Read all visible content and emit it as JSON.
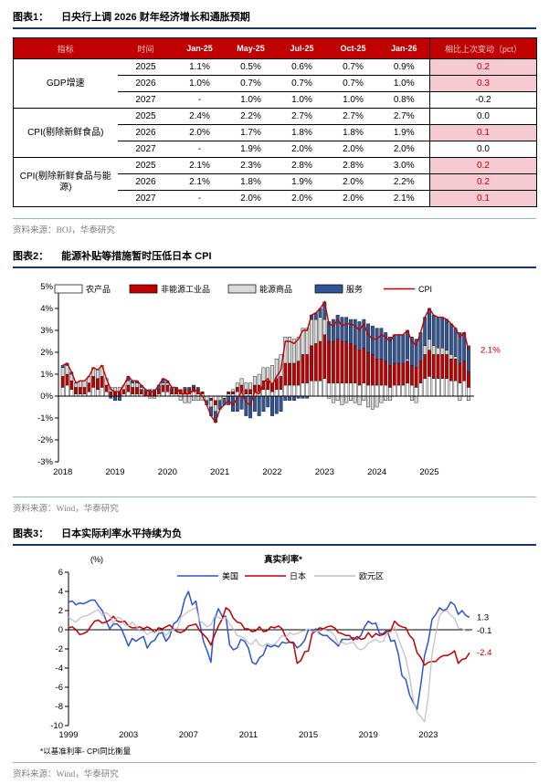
{
  "figure1": {
    "label": "图表1：",
    "title": "日央行上调 2026 财年经济增长和通胀预期",
    "source": "资料来源：BOJ，华泰研究",
    "table": {
      "columns": [
        "指标",
        "时间",
        "Jan-25",
        "May-25",
        "Jul-25",
        "Oct-25",
        "Jan-26",
        "相比上次变动（pct）"
      ],
      "groups": [
        {
          "label": "GDP增速",
          "rows": [
            {
              "year": "2025",
              "values": [
                "1.1%",
                "0.5%",
                "0.6%",
                "0.7%",
                "0.9%"
              ],
              "change": "0.2",
              "highlight": true
            },
            {
              "year": "2026",
              "values": [
                "1.0%",
                "0.7%",
                "0.7%",
                "0.7%",
                "1.0%"
              ],
              "change": "0.3",
              "highlight": true
            },
            {
              "year": "2027",
              "values": [
                "-",
                "1.0%",
                "1.0%",
                "1.0%",
                "0.8%"
              ],
              "change": "-0.2",
              "highlight": false
            }
          ]
        },
        {
          "label": "CPI(剔除新鲜食品)",
          "rows": [
            {
              "year": "2025",
              "values": [
                "2.4%",
                "2.2%",
                "2.7%",
                "2.7%",
                "2.7%"
              ],
              "change": "0.0",
              "highlight": false
            },
            {
              "year": "2026",
              "values": [
                "2.0%",
                "1.7%",
                "1.8%",
                "1.8%",
                "1.9%"
              ],
              "change": "0.1",
              "highlight": true
            },
            {
              "year": "2027",
              "values": [
                "-",
                "1.9%",
                "2.0%",
                "2.0%",
                "2.0%"
              ],
              "change": "0.0",
              "highlight": false
            }
          ]
        },
        {
          "label": "CPI(剔除新鲜食品与能源)",
          "rows": [
            {
              "year": "2025",
              "values": [
                "2.1%",
                "2.3%",
                "2.8%",
                "2.8%",
                "3.0%"
              ],
              "change": "0.2",
              "highlight": true
            },
            {
              "year": "2026",
              "values": [
                "2.1%",
                "1.8%",
                "1.9%",
                "2.0%",
                "2.2%"
              ],
              "change": "0.2",
              "highlight": true
            },
            {
              "year": "2027",
              "values": [
                "-",
                "2.0%",
                "2.0%",
                "2.0%",
                "2.1%"
              ],
              "change": "0.1",
              "highlight": true
            }
          ]
        }
      ]
    }
  },
  "figure2": {
    "label": "图表2：",
    "title": "能源补贴等措施暂时压低日本 CPI",
    "source": "资料来源：Wind，华泰研究"
  },
  "figure3": {
    "label": "图表3：",
    "title": "日本实际利率水平持续为负",
    "source": "资料来源：Wind，华泰研究"
  },
  "colors": {
    "header_red": "#C00000",
    "pink_cell": "#F5CBD1",
    "navy_rule": "#16365D",
    "light_rule": "#9AB3D5",
    "bar_agri": "#FFFFFF",
    "bar_goods": "#C00000",
    "bar_energy": "#D9D9D9",
    "bar_services": "#2F5597",
    "line_cpi": "#C00000",
    "line_us": "#2F55C8",
    "line_jp": "#C00000",
    "line_ez": "#BFBFBF"
  },
  "chart_data": [
    {
      "type": "bar",
      "subtype": "stacked-bar-with-line",
      "title": "能源补贴等措施暂时压低日本 CPI",
      "freq": "monthly",
      "x_start": "2018-01",
      "x_end": "2025-10",
      "year_ticks": [
        "2018",
        "2019",
        "2020",
        "2021",
        "2022",
        "2023",
        "2024",
        "2025"
      ],
      "ylim": [
        -3,
        5
      ],
      "ytick_suffix": "%",
      "series": [
        {
          "name": "农产品",
          "color": "#FFFFFF",
          "values": [
            0.4,
            0.5,
            0.3,
            0.1,
            0.1,
            0.1,
            0.2,
            0.4,
            0.3,
            0.4,
            0.2,
            0.0,
            0.0,
            0.0,
            0.1,
            0.2,
            0.1,
            0.1,
            0.1,
            0.0,
            0.0,
            0.0,
            0.1,
            0.2,
            0.2,
            0.1,
            0.1,
            0.1,
            0.1,
            0.1,
            0.2,
            0.1,
            0.1,
            0.0,
            -0.1,
            -0.2,
            0.0,
            0.0,
            0.1,
            0.1,
            0.2,
            0.2,
            0.1,
            0.1,
            0.2,
            0.2,
            0.3,
            0.3,
            0.2,
            0.3,
            0.3,
            0.5,
            0.5,
            0.5,
            0.5,
            0.6,
            0.6,
            0.7,
            0.7,
            0.7,
            0.8,
            0.6,
            0.6,
            0.6,
            0.6,
            0.6,
            0.6,
            0.6,
            0.5,
            0.6,
            0.5,
            0.5,
            0.5,
            0.5,
            0.5,
            0.4,
            0.5,
            0.5,
            0.5,
            0.6,
            0.5,
            0.4,
            0.6,
            0.8,
            0.9,
            0.8,
            0.8,
            0.8,
            0.8,
            0.7,
            0.7,
            0.6,
            0.7,
            0.4
          ]
        },
        {
          "name": "非能源工业品",
          "color": "#C00000",
          "values": [
            0.5,
            0.5,
            0.4,
            0.3,
            0.3,
            0.3,
            0.4,
            0.5,
            0.5,
            0.5,
            0.3,
            0.2,
            0.2,
            0.2,
            0.2,
            0.3,
            0.3,
            0.3,
            0.2,
            0.2,
            0.2,
            0.2,
            0.2,
            0.3,
            0.3,
            0.2,
            0.2,
            0.2,
            0.2,
            0.2,
            0.2,
            0.2,
            0.1,
            0.0,
            -0.1,
            -0.2,
            0.0,
            0.0,
            0.1,
            0.1,
            0.2,
            0.3,
            0.2,
            0.2,
            0.3,
            0.3,
            0.4,
            0.4,
            0.4,
            0.5,
            0.6,
            1.0,
            1.0,
            1.0,
            1.1,
            1.3,
            1.3,
            1.6,
            1.7,
            1.8,
            2.0,
            1.9,
            1.9,
            2.0,
            1.9,
            1.9,
            1.8,
            1.7,
            1.6,
            1.6,
            1.5,
            1.4,
            1.2,
            1.2,
            1.1,
            1.0,
            1.0,
            1.0,
            1.0,
            1.0,
            0.9,
            0.9,
            1.0,
            1.1,
            1.2,
            1.1,
            1.1,
            1.1,
            1.1,
            1.0,
            1.0,
            0.9,
            0.9,
            0.7
          ]
        },
        {
          "name": "能源商品",
          "color": "#D9D9D9",
          "values": [
            0.4,
            0.4,
            0.3,
            0.2,
            0.3,
            0.3,
            0.3,
            0.4,
            0.4,
            0.5,
            0.3,
            0.2,
            0.2,
            0.2,
            0.2,
            0.2,
            0.2,
            0.2,
            0.1,
            0.0,
            -0.1,
            -0.1,
            0.0,
            0.1,
            0.1,
            0.0,
            0.0,
            -0.2,
            -0.3,
            -0.3,
            -0.2,
            -0.2,
            -0.2,
            -0.2,
            -0.3,
            -0.3,
            -0.2,
            -0.1,
            0.0,
            0.1,
            0.2,
            0.3,
            0.3,
            0.3,
            0.4,
            0.5,
            0.6,
            0.6,
            0.8,
            0.9,
            1.0,
            1.2,
            1.2,
            1.1,
            1.1,
            1.2,
            1.2,
            1.2,
            1.1,
            1.1,
            0.7,
            -0.1,
            -0.3,
            -0.2,
            -0.4,
            -0.3,
            -0.2,
            -0.3,
            -0.4,
            -0.2,
            -0.5,
            -0.6,
            -0.5,
            -0.3,
            -0.2,
            -0.2,
            0.0,
            0.0,
            0.0,
            0.1,
            -0.2,
            -0.3,
            0.0,
            0.4,
            0.5,
            0.4,
            0.3,
            0.3,
            0.2,
            0.2,
            0.1,
            -0.2,
            0.0,
            -0.2
          ]
        },
        {
          "name": "服务",
          "color": "#2F5597",
          "values": [
            0.1,
            0.1,
            0.1,
            0.0,
            0.0,
            0.0,
            0.0,
            0.0,
            0.0,
            0.0,
            0.0,
            -0.1,
            -0.2,
            -0.2,
            0.0,
            0.2,
            0.1,
            0.1,
            0.1,
            0.1,
            0.1,
            0.1,
            0.2,
            0.2,
            0.1,
            0.1,
            0.1,
            0.0,
            0.1,
            0.1,
            0.1,
            0.1,
            0.0,
            -0.2,
            -0.4,
            -0.5,
            -0.4,
            -0.3,
            -0.4,
            -0.7,
            -0.7,
            -0.6,
            -0.9,
            -1.0,
            -0.7,
            -0.9,
            -0.7,
            -0.5,
            -0.9,
            -0.8,
            -0.7,
            -0.2,
            -0.2,
            -0.2,
            -0.1,
            -0.1,
            -0.1,
            0.2,
            0.3,
            0.4,
            0.8,
            0.9,
            1.0,
            1.1,
            1.1,
            1.1,
            1.1,
            1.2,
            1.3,
            1.3,
            1.3,
            1.3,
            1.4,
            1.4,
            1.3,
            1.3,
            1.3,
            1.3,
            1.3,
            1.3,
            1.3,
            1.3,
            1.3,
            1.3,
            1.4,
            1.4,
            1.4,
            1.4,
            1.4,
            1.4,
            1.3,
            1.4,
            1.3,
            1.2
          ]
        }
      ],
      "line": {
        "name": "CPI",
        "color": "#C00000",
        "values": [
          1.4,
          1.5,
          1.1,
          0.6,
          0.7,
          0.7,
          0.9,
          1.3,
          1.2,
          1.4,
          0.8,
          0.3,
          0.2,
          0.2,
          0.5,
          0.9,
          0.7,
          0.7,
          0.5,
          0.3,
          0.2,
          0.2,
          0.5,
          0.8,
          0.7,
          0.4,
          0.4,
          0.1,
          0.1,
          0.1,
          0.3,
          0.2,
          0.0,
          -0.4,
          -0.9,
          -1.2,
          -0.6,
          -0.4,
          -0.2,
          -0.4,
          -0.1,
          0.2,
          -0.3,
          -0.4,
          0.2,
          0.1,
          0.6,
          0.8,
          0.5,
          0.9,
          1.2,
          2.5,
          2.5,
          2.4,
          2.6,
          3.0,
          3.0,
          3.7,
          3.8,
          4.0,
          4.3,
          3.3,
          3.2,
          3.5,
          3.2,
          3.3,
          3.3,
          3.2,
          3.0,
          3.3,
          2.8,
          2.6,
          2.6,
          2.8,
          2.7,
          2.5,
          2.8,
          2.8,
          2.8,
          3.0,
          2.5,
          2.3,
          2.9,
          3.6,
          4.0,
          3.7,
          3.6,
          3.6,
          3.5,
          3.3,
          3.1,
          2.7,
          2.9,
          2.1
        ]
      },
      "annotation": {
        "text": "2.1%",
        "value": 2.1,
        "color": "#C00000"
      },
      "legend_position": "top-inside",
      "grid": false
    },
    {
      "type": "line",
      "title": "真实利率*",
      "unit_label": "(%)",
      "footnote": "*以基准利率- CPI同比衡量",
      "freq": "quarterly",
      "x_start": 1999,
      "x_end": 2025.75,
      "xticks": [
        "1999",
        "2003",
        "2007",
        "2011",
        "2015",
        "2019",
        "2023"
      ],
      "ylim": [
        -10,
        6
      ],
      "yticks": [
        6,
        4,
        2,
        0,
        -2,
        -4,
        -6,
        -8,
        -10
      ],
      "series": [
        {
          "name": "美国",
          "color": "#2F55C8",
          "end_label": "1.3",
          "values": [
            2.9,
            3.0,
            2.6,
            2.8,
            2.7,
            2.9,
            3.1,
            3.1,
            2.5,
            2.0,
            1.0,
            0.1,
            0.6,
            0.6,
            0.2,
            -0.7,
            -1.7,
            -0.9,
            -1.2,
            -0.9,
            -0.7,
            -1.9,
            -1.3,
            -1.1,
            -0.4,
            -0.3,
            -1.2,
            -0.7,
            0.6,
            0.9,
            1.6,
            3.2,
            4.0,
            2.6,
            3.0,
            0.7,
            -1.2,
            -2.2,
            -3.4,
            1.1,
            2.2,
            1.4,
            1.4,
            -1.6,
            -2.1,
            -1.9,
            -1.0,
            -1.2,
            -1.9,
            -3.4,
            -3.6,
            -2.9,
            -2.6,
            -1.6,
            -1.8,
            -1.6,
            -1.8,
            -1.3,
            -1.4,
            -1.3,
            -1.3,
            -1.9,
            -1.6,
            -1.1,
            0.0,
            -0.1,
            0.1,
            -0.4,
            -0.6,
            -0.6,
            -1.0,
            -1.3,
            -1.7,
            -1.0,
            -1.0,
            -1.0,
            -0.8,
            -1.0,
            -0.6,
            0.3,
            0.9,
            0.6,
            0.7,
            -0.4,
            -0.4,
            0.0,
            -1.2,
            -1.1,
            -2.5,
            -4.8,
            -5.2,
            -6.8,
            -7.6,
            -8.3,
            -5.7,
            -2.7,
            -1.2,
            1.1,
            1.6,
            2.3,
            2.0,
            2.2,
            2.9,
            2.6,
            1.6,
            2.0,
            1.5,
            1.3
          ]
        },
        {
          "name": "日本",
          "color": "#C00000",
          "end_label": "-2.4",
          "values": [
            0.2,
            0.3,
            0.0,
            -0.5,
            -0.4,
            -0.2,
            0.4,
            0.9,
            1.0,
            0.7,
            0.8,
            1.0,
            1.4,
            0.9,
            0.8,
            0.9,
            0.4,
            0.2,
            0.2,
            0.3,
            0.1,
            0.3,
            0.1,
            -0.3,
            0.2,
            0.1,
            0.3,
            0.5,
            0.1,
            -0.2,
            -0.3,
            -0.1,
            0.4,
            0.5,
            0.6,
            -0.1,
            -0.5,
            -0.9,
            -1.6,
            -0.5,
            0.4,
            1.1,
            2.3,
            2.0,
            1.2,
            0.8,
            0.7,
            0.1,
            0.1,
            -0.2,
            -0.1,
            0.3,
            -0.2,
            -0.1,
            0.3,
            0.2,
            0.4,
            0.1,
            -0.8,
            -1.3,
            -1.4,
            -3.5,
            -3.2,
            -2.3,
            -2.2,
            -0.4,
            -0.1,
            0.2,
            0.1,
            0.3,
            0.4,
            0.2,
            -0.3,
            -0.4,
            -0.6,
            -0.6,
            -1.1,
            -0.7,
            -1.0,
            -0.9,
            -0.3,
            -0.8,
            -0.4,
            -0.6,
            -0.5,
            -0.2,
            -0.1,
            0.9,
            0.5,
            0.3,
            0.2,
            -0.6,
            -1.0,
            -2.4,
            -2.9,
            -3.7,
            -3.4,
            -3.3,
            -3.3,
            -2.9,
            -2.7,
            -2.7,
            -2.5,
            -2.2,
            -3.5,
            -3.1,
            -3.0,
            -2.4
          ]
        },
        {
          "name": "欧元区",
          "color": "#BFBFBF",
          "end_label": "-0.1",
          "values": [
            1.3,
            1.0,
            0.8,
            1.2,
            1.4,
            1.5,
            1.7,
            1.9,
            2.1,
            1.5,
            1.8,
            1.5,
            0.7,
            1.3,
            1.2,
            0.5,
            0.4,
            0.8,
            0.4,
            -0.1,
            -0.1,
            -0.5,
            -0.2,
            -0.3,
            -0.1,
            -0.1,
            -0.6,
            -0.2,
            0.1,
            0.1,
            1.3,
            1.6,
            1.9,
            2.1,
            2.3,
            0.9,
            0.7,
            0.3,
            0.5,
            1.4,
            1.3,
            1.1,
            1.3,
            0.6,
            0.1,
            -0.6,
            -0.7,
            -0.9,
            -1.4,
            -1.5,
            -1.0,
            -1.6,
            -1.7,
            -1.4,
            -1.6,
            -1.5,
            -1.1,
            -0.6,
            -0.8,
            -0.3,
            -0.5,
            -0.4,
            -0.2,
            -0.1,
            0.1,
            -0.2,
            -0.1,
            -0.2,
            0.0,
            -0.1,
            -0.2,
            -0.6,
            -1.5,
            -1.3,
            -1.5,
            -1.4,
            -1.3,
            -1.9,
            -2.1,
            -1.9,
            -1.4,
            -1.2,
            -1.0,
            -1.3,
            -1.2,
            -0.3,
            -0.3,
            0.3,
            -0.9,
            -1.9,
            -3.0,
            -4.9,
            -7.4,
            -8.6,
            -9.1,
            -9.6,
            -6.9,
            -2.5,
            -0.4,
            1.5,
            1.9,
            2.0,
            1.5,
            1.2,
            0.2,
            0.1,
            -0.1,
            -0.1
          ]
        }
      ],
      "end_labels": [
        {
          "text": "1.3",
          "color": "#000000"
        },
        {
          "text": "-0.1",
          "color": "#000000"
        },
        {
          "text": "-2.4",
          "color": "#C00000"
        }
      ],
      "legend_position": "top-inside",
      "grid": false
    }
  ]
}
